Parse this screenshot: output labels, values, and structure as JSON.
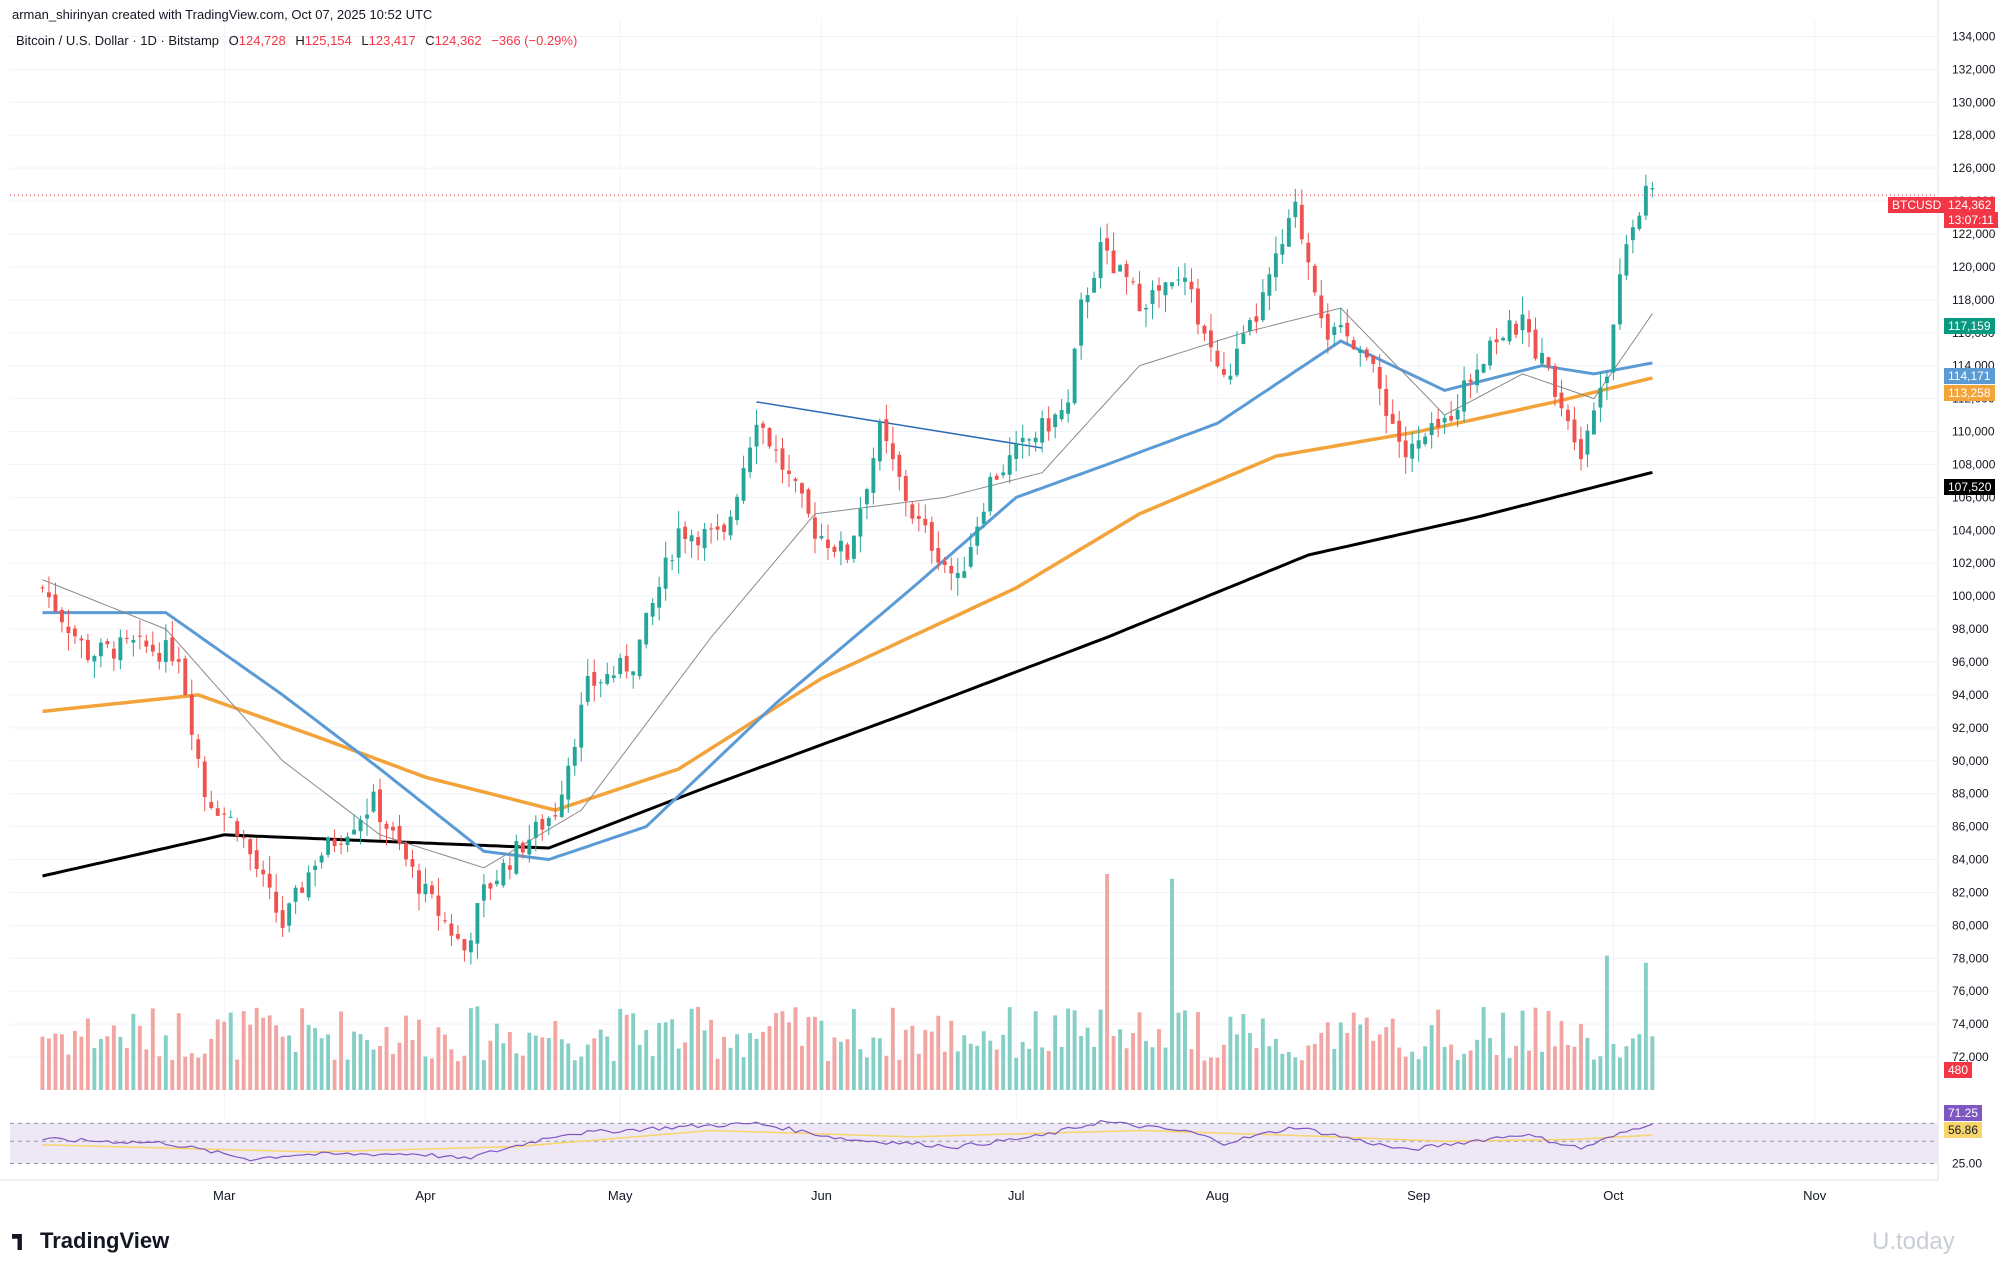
{
  "header": {
    "credit": "arman_shirinyan created with TradingView.com, Oct 07, 2025 10:52 UTC",
    "symbol_line": "Bitcoin / U.S. Dollar · 1D · Bitstamp",
    "open_label": "O",
    "open": "124,728",
    "high_label": "H",
    "high": "125,154",
    "low_label": "L",
    "low": "123,417",
    "close_label": "C",
    "close": "124,362",
    "change": "−366 (−0.29%)"
  },
  "footer": {
    "logo": "TradingView",
    "watermark": "U.today"
  },
  "price_tags": {
    "ticker": "BTCUSD",
    "last": "124,362",
    "countdown": "13:07:11",
    "ma_green": "117,159",
    "ma_blue": "114,171",
    "ma_orange": "113,258",
    "ma_black": "107,520",
    "volume": "480",
    "rsi": "71.25",
    "rsi_ma": "56.86"
  },
  "colors": {
    "up": "#26a69a",
    "down": "#ef5350",
    "vol_up": "#86cfc7",
    "vol_down": "#f2a6a4",
    "ma_black": "#000000",
    "ma_orange": "#f2a33a",
    "ma_blue": "#5b9bd5",
    "ma_thin": "#8a8a8a",
    "trendline": "#2e6bb5",
    "rsi": "#7e57c2",
    "rsi_ma": "#f7d56a",
    "rsi_band": "#ede7f6"
  },
  "chart_data": {
    "type": "candlestick",
    "title": "Bitcoin / U.S. Dollar · 1D · Bitstamp",
    "ylim": [
      70000,
      135000
    ],
    "y_ticks": [
      72000,
      74000,
      76000,
      78000,
      80000,
      82000,
      84000,
      86000,
      88000,
      90000,
      92000,
      94000,
      96000,
      98000,
      100000,
      102000,
      104000,
      106000,
      108000,
      110000,
      112000,
      114000,
      116000,
      118000,
      120000,
      122000,
      124000,
      126000,
      128000,
      130000,
      132000,
      134000
    ],
    "x_labels": [
      "Mar",
      "Apr",
      "May",
      "Jun",
      "Jul",
      "Aug",
      "Sep",
      "Oct",
      "Nov"
    ],
    "x_label_dates": [
      "2025-03-01",
      "2025-04-01",
      "2025-05-01",
      "2025-06-01",
      "2025-07-01",
      "2025-08-01",
      "2025-09-01",
      "2025-10-01",
      "2025-11-01"
    ],
    "date_range": [
      "2025-02-01",
      "2025-10-07"
    ],
    "close_anchors": [
      [
        "2025-02-01",
        100500
      ],
      [
        "2025-02-08",
        96500
      ],
      [
        "2025-02-15",
        97000
      ],
      [
        "2025-02-22",
        96500
      ],
      [
        "2025-02-26",
        88000
      ],
      [
        "2025-03-03",
        86000
      ],
      [
        "2025-03-10",
        80000
      ],
      [
        "2025-03-15",
        84000
      ],
      [
        "2025-03-24",
        87500
      ],
      [
        "2025-03-31",
        82500
      ],
      [
        "2025-04-07",
        78500
      ],
      [
        "2025-04-10",
        82000
      ],
      [
        "2025-04-15",
        84500
      ],
      [
        "2025-04-21",
        87000
      ],
      [
        "2025-04-26",
        94500
      ],
      [
        "2025-05-03",
        96000
      ],
      [
        "2025-05-10",
        104000
      ],
      [
        "2025-05-17",
        103500
      ],
      [
        "2025-05-22",
        111000
      ],
      [
        "2025-05-31",
        104000
      ],
      [
        "2025-06-05",
        102500
      ],
      [
        "2025-06-10",
        110000
      ],
      [
        "2025-06-15",
        105000
      ],
      [
        "2025-06-22",
        100800
      ],
      [
        "2025-06-27",
        107000
      ],
      [
        "2025-07-03",
        109500
      ],
      [
        "2025-07-09",
        111500
      ],
      [
        "2025-07-11",
        117500
      ],
      [
        "2025-07-14",
        121000
      ],
      [
        "2025-07-20",
        118000
      ],
      [
        "2025-07-27",
        119000
      ],
      [
        "2025-08-02",
        113000
      ],
      [
        "2025-08-07",
        117000
      ],
      [
        "2025-08-13",
        123500
      ],
      [
        "2025-08-18",
        116000
      ],
      [
        "2025-08-23",
        115500
      ],
      [
        "2025-08-30",
        108500
      ],
      [
        "2025-09-05",
        110500
      ],
      [
        "2025-09-12",
        115500
      ],
      [
        "2025-09-17",
        116500
      ],
      [
        "2025-09-22",
        112800
      ],
      [
        "2025-09-26",
        109000
      ],
      [
        "2025-09-30",
        114000
      ],
      [
        "2025-10-03",
        122000
      ],
      [
        "2025-10-05",
        123500
      ],
      [
        "2025-10-06",
        124700
      ],
      [
        "2025-10-07",
        124362
      ]
    ],
    "ma_black_anchors": [
      [
        "2025-02-01",
        83000
      ],
      [
        "2025-03-01",
        85500
      ],
      [
        "2025-04-01",
        85000
      ],
      [
        "2025-04-20",
        84700
      ],
      [
        "2025-05-15",
        88500
      ],
      [
        "2025-06-15",
        93000
      ],
      [
        "2025-07-15",
        97500
      ],
      [
        "2025-08-15",
        102500
      ],
      [
        "2025-09-10",
        104800
      ],
      [
        "2025-10-07",
        107520
      ]
    ],
    "ma_orange_anchors": [
      [
        "2025-02-01",
        93000
      ],
      [
        "2025-02-25",
        94000
      ],
      [
        "2025-03-15",
        91500
      ],
      [
        "2025-04-01",
        89000
      ],
      [
        "2025-04-21",
        87000
      ],
      [
        "2025-05-10",
        89500
      ],
      [
        "2025-06-01",
        95000
      ],
      [
        "2025-07-01",
        100500
      ],
      [
        "2025-07-20",
        105000
      ],
      [
        "2025-08-10",
        108500
      ],
      [
        "2025-09-01",
        110000
      ],
      [
        "2025-09-22",
        111800
      ],
      [
        "2025-10-07",
        113258
      ]
    ],
    "ma_blue_anchors": [
      [
        "2025-02-01",
        99000
      ],
      [
        "2025-02-20",
        99000
      ],
      [
        "2025-03-10",
        94000
      ],
      [
        "2025-03-25",
        89500
      ],
      [
        "2025-04-10",
        84500
      ],
      [
        "2025-04-20",
        84000
      ],
      [
        "2025-05-05",
        86000
      ],
      [
        "2025-05-25",
        93500
      ],
      [
        "2025-06-15",
        100500
      ],
      [
        "2025-07-01",
        106000
      ],
      [
        "2025-07-15",
        108000
      ],
      [
        "2025-08-01",
        110500
      ],
      [
        "2025-08-20",
        115500
      ],
      [
        "2025-09-05",
        112500
      ],
      [
        "2025-09-20",
        114000
      ],
      [
        "2025-09-28",
        113500
      ],
      [
        "2025-10-07",
        114171
      ]
    ],
    "ma_thin_anchors": [
      [
        "2025-02-01",
        101000
      ],
      [
        "2025-02-20",
        98000
      ],
      [
        "2025-03-10",
        90000
      ],
      [
        "2025-03-25",
        85500
      ],
      [
        "2025-04-10",
        83500
      ],
      [
        "2025-04-25",
        87000
      ],
      [
        "2025-05-15",
        97500
      ],
      [
        "2025-05-31",
        105000
      ],
      [
        "2025-06-20",
        106000
      ],
      [
        "2025-07-05",
        107500
      ],
      [
        "2025-07-20",
        114000
      ],
      [
        "2025-08-05",
        116000
      ],
      [
        "2025-08-20",
        117500
      ],
      [
        "2025-09-05",
        111000
      ],
      [
        "2025-09-17",
        113500
      ],
      [
        "2025-09-28",
        112000
      ],
      [
        "2025-10-07",
        117159
      ]
    ],
    "trendline": [
      [
        "2025-05-22",
        111800
      ],
      [
        "2025-07-05",
        109000
      ]
    ],
    "volume_ylim": [
      0,
      1000
    ],
    "volume_highlights": [
      [
        "2025-07-15",
        900
      ],
      [
        "2025-07-25",
        880
      ],
      [
        "2025-09-30",
        560
      ],
      [
        "2025-10-06",
        530
      ]
    ],
    "rsi_ylim": [
      20,
      85
    ],
    "rsi_levels": [
      25,
      50,
      70
    ],
    "rsi_anchors": [
      [
        "2025-02-01",
        52
      ],
      [
        "2025-02-20",
        48
      ],
      [
        "2025-03-05",
        30
      ],
      [
        "2025-03-12",
        35
      ],
      [
        "2025-03-31",
        36
      ],
      [
        "2025-04-07",
        30
      ],
      [
        "2025-04-22",
        58
      ],
      [
        "2025-05-10",
        66
      ],
      [
        "2025-05-22",
        70
      ],
      [
        "2025-06-05",
        52
      ],
      [
        "2025-06-22",
        44
      ],
      [
        "2025-07-05",
        56
      ],
      [
        "2025-07-14",
        72
      ],
      [
        "2025-07-28",
        60
      ],
      [
        "2025-08-02",
        48
      ],
      [
        "2025-08-13",
        66
      ],
      [
        "2025-08-30",
        40
      ],
      [
        "2025-09-17",
        58
      ],
      [
        "2025-09-26",
        42
      ],
      [
        "2025-10-07",
        71.25
      ]
    ],
    "rsi_ma_anchors": [
      [
        "2025-02-01",
        46
      ],
      [
        "2025-03-15",
        38
      ],
      [
        "2025-04-15",
        44
      ],
      [
        "2025-05-15",
        62
      ],
      [
        "2025-06-15",
        55
      ],
      [
        "2025-07-20",
        62
      ],
      [
        "2025-08-15",
        56
      ],
      [
        "2025-09-05",
        50
      ],
      [
        "2025-09-25",
        52
      ],
      [
        "2025-10-07",
        56.86
      ]
    ]
  }
}
